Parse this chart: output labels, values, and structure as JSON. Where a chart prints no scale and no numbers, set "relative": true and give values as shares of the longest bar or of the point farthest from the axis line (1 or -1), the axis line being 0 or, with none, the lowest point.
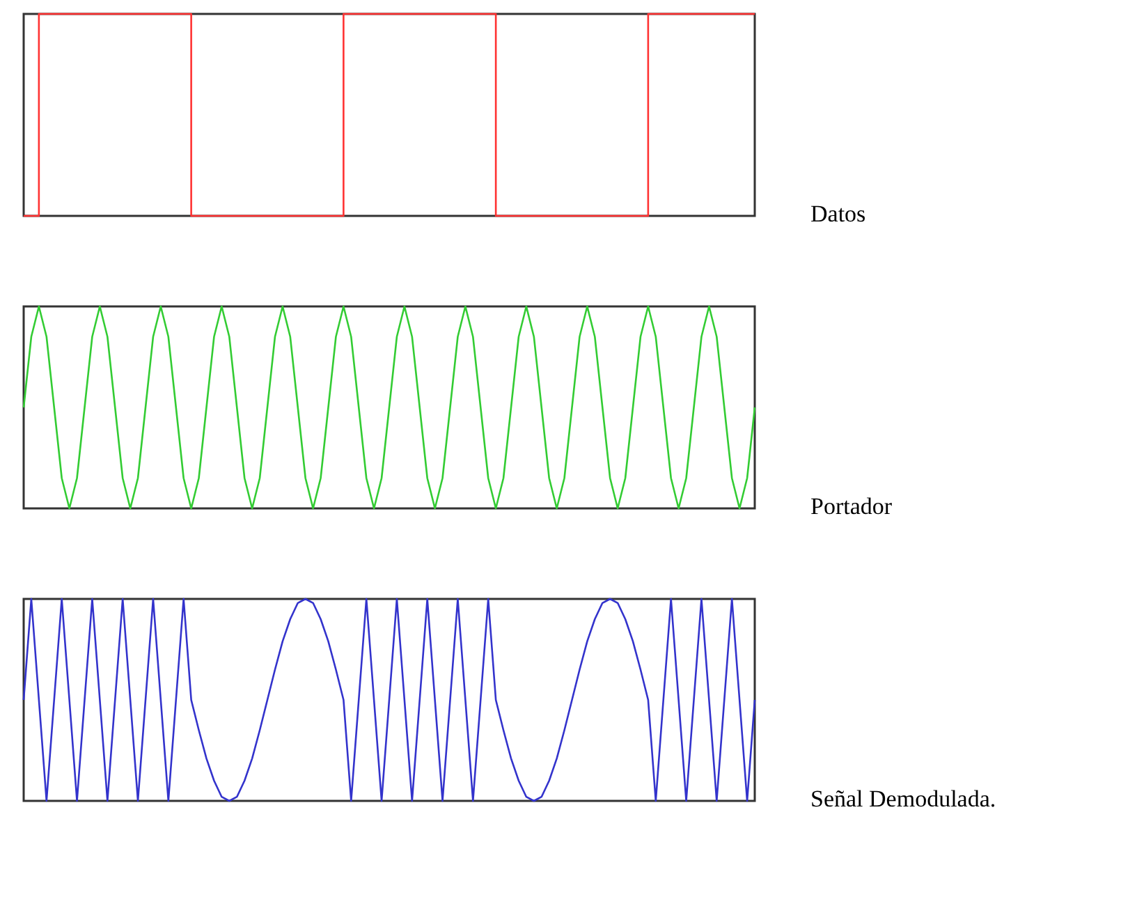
{
  "chart_data": [
    {
      "type": "step",
      "relative": true,
      "tick_labels": false,
      "categories": [
        null,
        null,
        null,
        null,
        null,
        null,
        null,
        null,
        null,
        null,
        null,
        null,
        null,
        null,
        null,
        null,
        null,
        null,
        null,
        null,
        null,
        null,
        null,
        null,
        null,
        null,
        null,
        null,
        null,
        null,
        null,
        null,
        null,
        null,
        null,
        null,
        null,
        null,
        null,
        null,
        null,
        null,
        null,
        null,
        null,
        null,
        null,
        null,
        null,
        null,
        null,
        null,
        null,
        null,
        null,
        null,
        null,
        null,
        null,
        null,
        null,
        null,
        null,
        null,
        null,
        null,
        null,
        null,
        null,
        null,
        null,
        null,
        null,
        null,
        null,
        null,
        null,
        null,
        null,
        null,
        null,
        null,
        null,
        null,
        null,
        null,
        null,
        null,
        null,
        null,
        null,
        null,
        null,
        null,
        null,
        null,
        null
      ],
      "series": [
        {
          "color": "#ff3333",
          "values": [
            0,
            0,
            1,
            1,
            1,
            1,
            1,
            1,
            1,
            1,
            1,
            1,
            1,
            1,
            1,
            1,
            1,
            1,
            1,
            1,
            1,
            1,
            0,
            0,
            0,
            0,
            0,
            0,
            0,
            0,
            0,
            0,
            0,
            0,
            0,
            0,
            0,
            0,
            0,
            0,
            0,
            0,
            1,
            1,
            1,
            1,
            1,
            1,
            1,
            1,
            1,
            1,
            1,
            1,
            1,
            1,
            1,
            1,
            1,
            1,
            1,
            1,
            0,
            0,
            0,
            0,
            0,
            0,
            0,
            0,
            0,
            0,
            0,
            0,
            0,
            0,
            0,
            0,
            0,
            0,
            0,
            0,
            1,
            1,
            1,
            1,
            1,
            1,
            1,
            1,
            1,
            1,
            1,
            1,
            1,
            1,
            1
          ]
        }
      ],
      "annotations": [
        "Datos"
      ]
    },
    {
      "type": "line",
      "relative": true,
      "tick_labels": false,
      "categories": [
        null,
        null,
        null,
        null,
        null,
        null,
        null,
        null,
        null,
        null,
        null,
        null,
        null,
        null,
        null,
        null,
        null,
        null,
        null,
        null,
        null,
        null,
        null,
        null,
        null,
        null,
        null,
        null,
        null,
        null,
        null,
        null,
        null,
        null,
        null,
        null,
        null,
        null,
        null,
        null,
        null,
        null,
        null,
        null,
        null,
        null,
        null,
        null,
        null,
        null,
        null,
        null,
        null,
        null,
        null,
        null,
        null,
        null,
        null,
        null,
        null,
        null,
        null,
        null,
        null,
        null,
        null,
        null,
        null,
        null,
        null,
        null,
        null,
        null,
        null,
        null,
        null,
        null,
        null,
        null,
        null,
        null,
        null,
        null,
        null,
        null,
        null,
        null,
        null,
        null,
        null,
        null,
        null,
        null,
        null,
        null,
        null
      ],
      "series": [
        {
          "color": "#33cc33",
          "values": [
            0.5,
            0.85,
            1,
            0.85,
            0.5,
            0.15,
            0,
            0.15,
            0.5,
            0.85,
            1,
            0.85,
            0.5,
            0.15,
            0,
            0.15,
            0.5,
            0.85,
            1,
            0.85,
            0.5,
            0.15,
            0,
            0.15,
            0.5,
            0.85,
            1,
            0.85,
            0.5,
            0.15,
            0,
            0.15,
            0.5,
            0.85,
            1,
            0.85,
            0.5,
            0.15,
            0,
            0.15,
            0.5,
            0.85,
            1,
            0.85,
            0.5,
            0.15,
            0,
            0.15,
            0.5,
            0.85,
            1,
            0.85,
            0.5,
            0.15,
            0,
            0.15,
            0.5,
            0.85,
            1,
            0.85,
            0.5,
            0.15,
            0,
            0.15,
            0.5,
            0.85,
            1,
            0.85,
            0.5,
            0.15,
            0,
            0.15,
            0.5,
            0.85,
            1,
            0.85,
            0.5,
            0.15,
            0,
            0.15,
            0.5,
            0.85,
            1,
            0.85,
            0.5,
            0.15,
            0,
            0.15,
            0.5,
            0.85,
            1,
            0.85,
            0.5,
            0.15,
            0,
            0.15,
            0.5
          ]
        }
      ],
      "annotations": [
        "Portador"
      ]
    },
    {
      "type": "line",
      "relative": true,
      "tick_labels": false,
      "categories": [
        null,
        null,
        null,
        null,
        null,
        null,
        null,
        null,
        null,
        null,
        null,
        null,
        null,
        null,
        null,
        null,
        null,
        null,
        null,
        null,
        null,
        null,
        null,
        null,
        null,
        null,
        null,
        null,
        null,
        null,
        null,
        null,
        null,
        null,
        null,
        null,
        null,
        null,
        null,
        null,
        null,
        null,
        null,
        null,
        null,
        null,
        null,
        null,
        null,
        null,
        null,
        null,
        null,
        null,
        null,
        null,
        null,
        null,
        null,
        null,
        null,
        null,
        null,
        null,
        null,
        null,
        null,
        null,
        null,
        null,
        null,
        null,
        null,
        null,
        null,
        null,
        null,
        null,
        null,
        null,
        null,
        null,
        null,
        null,
        null,
        null,
        null,
        null,
        null,
        null,
        null,
        null,
        null,
        null,
        null,
        null,
        null
      ],
      "series": [
        {
          "color": "#3333cc",
          "values": [
            0.5,
            1,
            0.5,
            0,
            0.5,
            1,
            0.5,
            0,
            0.5,
            1,
            0.5,
            0,
            0.5,
            1,
            0.5,
            0,
            0.5,
            1,
            0.5,
            0,
            0.5,
            1,
            0.5,
            0.35,
            0.21,
            0.1,
            0.02,
            0,
            0.02,
            0.1,
            0.21,
            0.35,
            0.5,
            0.65,
            0.79,
            0.9,
            0.98,
            1,
            0.98,
            0.9,
            0.79,
            0.65,
            0.5,
            0,
            0.5,
            1,
            0.5,
            0,
            0.5,
            1,
            0.5,
            0,
            0.5,
            1,
            0.5,
            0,
            0.5,
            1,
            0.5,
            0,
            0.5,
            1,
            0.5,
            0.35,
            0.21,
            0.1,
            0.02,
            0,
            0.02,
            0.1,
            0.21,
            0.35,
            0.5,
            0.65,
            0.79,
            0.9,
            0.98,
            1,
            0.98,
            0.9,
            0.79,
            0.65,
            0.5,
            0,
            0.5,
            1,
            0.5,
            0,
            0.5,
            1,
            0.5,
            0,
            0.5,
            1,
            0.5,
            0,
            0.5
          ]
        }
      ],
      "annotations": [
        "Señal Demodulada."
      ]
    }
  ]
}
